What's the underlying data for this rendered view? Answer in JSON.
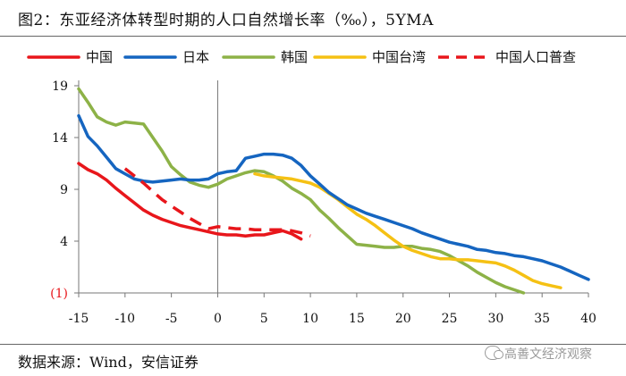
{
  "header": {
    "title": "图2：东亚经济体转型时期的人口自然增长率（‰），5YMA"
  },
  "footer": {
    "source": "数据来源：Wind，安信证券",
    "watermark": "高善文经济观察"
  },
  "chart_data": {
    "type": "line",
    "title": "东亚经济体转型时期的人口自然增长率（‰），5YMA",
    "xlabel": "",
    "ylabel": "",
    "xlim": [
      -15,
      40
    ],
    "ylim": [
      -1,
      19
    ],
    "x_ticks": [
      -15,
      -10,
      -5,
      0,
      5,
      10,
      15,
      20,
      25,
      30,
      35,
      40
    ],
    "x_tick_labels": [
      "-15",
      "-10",
      "-5",
      "0",
      "5",
      "10",
      "15",
      "20",
      "25",
      "30",
      "35",
      "40"
    ],
    "y_ticks": [
      19,
      14,
      9,
      4,
      -1
    ],
    "y_tick_labels": [
      "19",
      "14",
      "9",
      "4",
      "(1)"
    ],
    "legend_position": "top",
    "series": [
      {
        "name": "中国",
        "color": "#e8161b",
        "dash": "solid",
        "x": [
          -15,
          -14,
          -13,
          -12,
          -11,
          -10,
          -9,
          -8,
          -7,
          -6,
          -5,
          -4,
          -3,
          -2,
          -1,
          0,
          1,
          2,
          3,
          4,
          5,
          6,
          7,
          8,
          9
        ],
        "y": [
          11.5,
          10.9,
          10.5,
          9.9,
          9.1,
          8.4,
          7.7,
          7.0,
          6.5,
          6.1,
          5.8,
          5.5,
          5.3,
          5.1,
          4.9,
          4.7,
          4.6,
          4.6,
          4.5,
          4.6,
          4.6,
          4.8,
          5.0,
          4.7,
          4.2
        ]
      },
      {
        "name": "日本",
        "color": "#1565c0",
        "dash": "solid",
        "x": [
          -15,
          -14,
          -13,
          -12,
          -11,
          -10,
          -9,
          -8,
          -7,
          -6,
          -5,
          -4,
          -3,
          -2,
          -1,
          0,
          1,
          2,
          3,
          4,
          5,
          6,
          7,
          8,
          9,
          10,
          11,
          12,
          13,
          14,
          15,
          16,
          17,
          18,
          19,
          20,
          21,
          22,
          23,
          24,
          25,
          26,
          27,
          28,
          29,
          30,
          31,
          32,
          33,
          34,
          35,
          36,
          37,
          38,
          39,
          40
        ],
        "y": [
          16.1,
          14.1,
          13.2,
          12.1,
          11.0,
          10.5,
          10.0,
          9.8,
          9.7,
          9.8,
          9.9,
          10.0,
          9.9,
          9.9,
          10.0,
          10.5,
          10.7,
          10.8,
          12.0,
          12.2,
          12.4,
          12.4,
          12.3,
          12.0,
          11.3,
          10.3,
          9.5,
          8.7,
          8.1,
          7.5,
          7.1,
          6.7,
          6.4,
          6.1,
          5.8,
          5.5,
          5.2,
          4.8,
          4.5,
          4.2,
          3.9,
          3.7,
          3.5,
          3.2,
          3.1,
          2.9,
          2.8,
          2.6,
          2.5,
          2.3,
          2.1,
          1.8,
          1.5,
          1.1,
          0.7,
          0.3
        ]
      },
      {
        "name": "韩国",
        "color": "#8db247",
        "dash": "solid",
        "x": [
          -15,
          -14,
          -13,
          -12,
          -11,
          -10,
          -9,
          -8,
          -7,
          -6,
          -5,
          -4,
          -3,
          -2,
          -1,
          0,
          1,
          2,
          3,
          4,
          5,
          6,
          7,
          8,
          9,
          10,
          11,
          12,
          13,
          14,
          15,
          16,
          17,
          18,
          19,
          20,
          21,
          22,
          23,
          24,
          25,
          26,
          27,
          28,
          29,
          30,
          31,
          32,
          33
        ],
        "y": [
          18.7,
          17.4,
          16.0,
          15.5,
          15.2,
          15.5,
          15.4,
          15.3,
          14.0,
          12.7,
          11.2,
          10.4,
          9.7,
          9.4,
          9.2,
          9.5,
          10.0,
          10.3,
          10.6,
          10.8,
          10.7,
          10.3,
          9.8,
          9.1,
          8.6,
          8.0,
          7.0,
          6.2,
          5.3,
          4.5,
          3.7,
          3.6,
          3.5,
          3.4,
          3.4,
          3.5,
          3.5,
          3.3,
          3.2,
          3.0,
          2.6,
          2.1,
          1.6,
          1.0,
          0.5,
          0.0,
          -0.4,
          -0.7,
          -1.0
        ]
      },
      {
        "name": "中国台湾",
        "color": "#f5c114",
        "dash": "solid",
        "x": [
          4,
          5,
          6,
          7,
          8,
          9,
          10,
          11,
          12,
          13,
          14,
          15,
          16,
          17,
          18,
          19,
          20,
          21,
          22,
          23,
          24,
          25,
          26,
          27,
          28,
          29,
          30,
          31,
          32,
          33,
          34,
          35,
          36,
          37
        ],
        "y": [
          10.5,
          10.3,
          10.2,
          10.1,
          10.0,
          9.8,
          9.6,
          9.2,
          8.6,
          8.0,
          7.3,
          6.6,
          6.1,
          5.5,
          4.8,
          4.1,
          3.5,
          3.1,
          2.8,
          2.5,
          2.3,
          2.3,
          2.2,
          2.2,
          2.1,
          2.0,
          1.9,
          1.6,
          1.2,
          0.7,
          0.2,
          -0.1,
          -0.3,
          -0.5
        ]
      },
      {
        "name": "中国人口普查",
        "color": "#e8161b",
        "dash": "dashed",
        "x": [
          -10,
          -9,
          -8,
          -7,
          -6,
          -5,
          -4,
          -3,
          -2,
          -1,
          0,
          1,
          2,
          3,
          4,
          5,
          6,
          7,
          8,
          9,
          10
        ],
        "y": [
          11.0,
          10.3,
          9.6,
          8.8,
          8.0,
          7.4,
          6.8,
          6.2,
          5.7,
          5.2,
          5.4,
          5.3,
          5.2,
          5.2,
          5.1,
          5.1,
          5.1,
          5.1,
          5.0,
          4.8,
          4.5
        ]
      }
    ]
  }
}
